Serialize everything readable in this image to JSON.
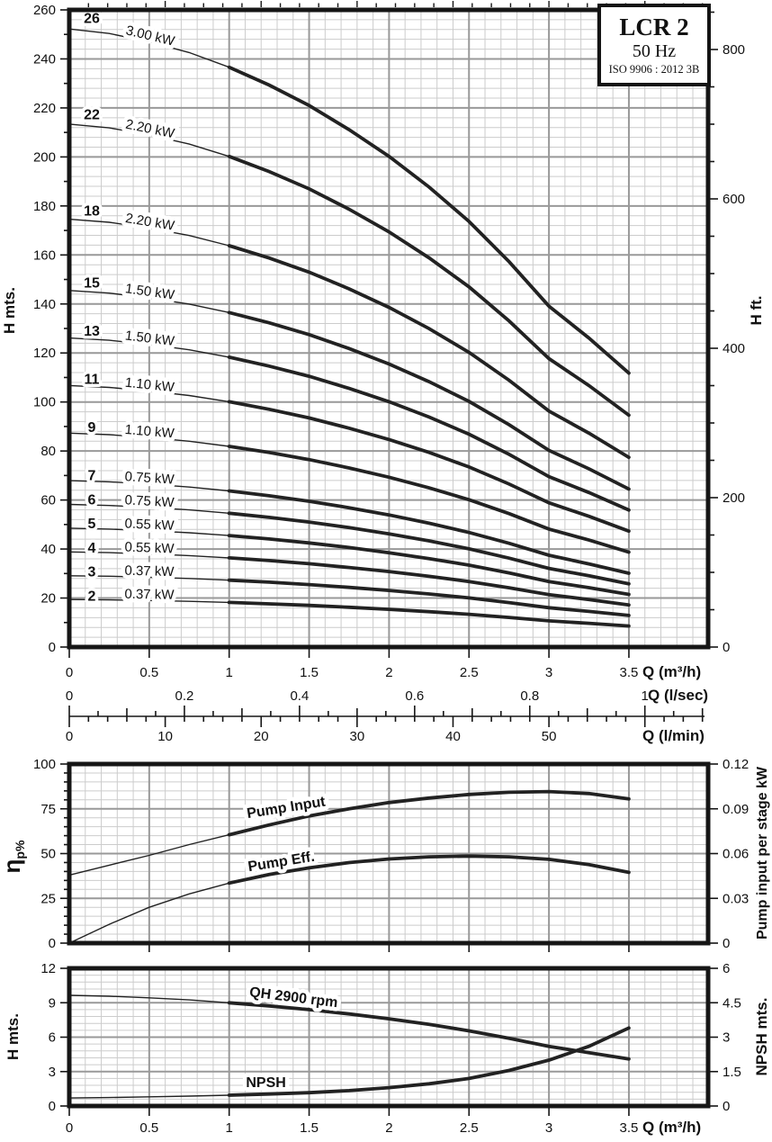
{
  "rating_plate": {
    "model": "LCR 2",
    "frequency": "50 Hz",
    "standard": "ISO 9906 : 2012 3B"
  },
  "colors": {
    "curve": "#222222",
    "grid_minor": "#cccccc",
    "grid_major": "#999999",
    "border": "#161616",
    "text": "#111111"
  },
  "chart_data": [
    {
      "id": "qh-multistage",
      "type": "line",
      "xlabel": "Q (m³/h)",
      "ylabel_left": "H mts.",
      "ylabel_right": "H ft.",
      "xlim": [
        0,
        4
      ],
      "ylim": [
        0,
        260
      ],
      "x_ticks": {
        "values": [
          0,
          0.5,
          1,
          1.5,
          2,
          2.5,
          3,
          3.5
        ],
        "labels": [
          "0",
          "0.5",
          "1",
          "1.5",
          "2",
          "2.5",
          "3",
          "3.5"
        ]
      },
      "y_ticks": {
        "values": [
          0,
          20,
          40,
          60,
          80,
          100,
          120,
          140,
          160,
          180,
          200,
          220,
          240,
          260
        ],
        "labels": [
          "0",
          "20",
          "40",
          "60",
          "80",
          "100",
          "120",
          "140",
          "160",
          "180",
          "200",
          "220",
          "240",
          "260"
        ],
        "minor_step": 10
      },
      "right_ticks": {
        "unit": "ft",
        "values": [
          0,
          200,
          400,
          600,
          800
        ],
        "labels": [
          "0",
          "200",
          "400",
          "600",
          "800"
        ],
        "minor_step": 50
      },
      "stage_curve_q": [
        0,
        0.25,
        0.5,
        0.75,
        1,
        1.25,
        1.5,
        1.75,
        2,
        2.25,
        2.5,
        2.75,
        3,
        3.25,
        3.5
      ],
      "stage_head_per_stage_m": [
        9.7,
        9.63,
        9.5,
        9.33,
        9.1,
        8.82,
        8.5,
        8.12,
        7.7,
        7.22,
        6.68,
        6.05,
        5.35,
        4.85,
        4.3
      ],
      "stages": [
        {
          "n": 26,
          "power": "3.00 kW"
        },
        {
          "n": 22,
          "power": "2.20 kW"
        },
        {
          "n": 18,
          "power": "2.20 kW"
        },
        {
          "n": 15,
          "power": "1.50 kW"
        },
        {
          "n": 13,
          "power": "1.50 kW"
        },
        {
          "n": 11,
          "power": "1.10 kW"
        },
        {
          "n": 9,
          "power": "1.10 kW"
        },
        {
          "n": 7,
          "power": "0.75 kW"
        },
        {
          "n": 6,
          "power": "0.75 kW"
        },
        {
          "n": 5,
          "power": "0.55 kW"
        },
        {
          "n": 4,
          "power": "0.55 kW"
        },
        {
          "n": 3,
          "power": "0.37 kW"
        },
        {
          "n": 2,
          "power": "0.37 kW"
        }
      ]
    },
    {
      "id": "efficiency-power",
      "type": "line",
      "ylabel_left": "ηp%",
      "ylabel_left_main": "η",
      "ylabel_left_sub": "p%",
      "ylabel_right": "Pump input per stage kW",
      "ylim": [
        0,
        100
      ],
      "right_ylim_kw": [
        0,
        0.12
      ],
      "left_ticks": {
        "values": [
          0,
          25,
          50,
          75,
          100
        ],
        "labels": [
          "0",
          "25",
          "50",
          "75",
          "100"
        ],
        "minor_step": 5
      },
      "right_ticks": {
        "values": [
          0,
          0.03,
          0.06,
          0.09,
          0.12
        ],
        "labels": [
          "0",
          "0.03",
          "0.06",
          "0.09",
          "0.12"
        ]
      },
      "x": [
        0,
        0.25,
        0.5,
        0.75,
        1,
        1.25,
        1.5,
        1.75,
        2,
        2.25,
        2.5,
        2.75,
        3,
        3.25,
        3.5
      ],
      "series": [
        {
          "name": "Pump Input",
          "values": [
            38,
            43.5,
            49,
            55,
            60.5,
            66,
            71,
            75,
            78.5,
            81,
            83,
            84.2,
            84.6,
            83.5,
            80.5
          ]
        },
        {
          "name": "Pump Eff.",
          "values": [
            0,
            10.5,
            20,
            27.5,
            33.5,
            38.3,
            42,
            45,
            47,
            48.2,
            48.6,
            48.2,
            46.8,
            43.8,
            39.5
          ]
        }
      ]
    },
    {
      "id": "qh-npsh-single-stage",
      "type": "line",
      "xlabel": "Q (m³/h)",
      "ylabel_left": "H mts.",
      "ylabel_right": "NPSH mts.",
      "ylim": [
        0,
        12
      ],
      "right_ylim": [
        0,
        6
      ],
      "x_ticks": {
        "values": [
          0,
          0.5,
          1,
          1.5,
          2,
          2.5,
          3,
          3.5
        ],
        "labels": [
          "0",
          "0.5",
          "1",
          "1.5",
          "2",
          "2.5",
          "3",
          "3.5"
        ]
      },
      "left_ticks": {
        "values": [
          0,
          3,
          6,
          9,
          12
        ],
        "labels": [
          "0",
          "3",
          "6",
          "9",
          "12"
        ]
      },
      "right_ticks": {
        "values": [
          0,
          1.5,
          3,
          4.5,
          6
        ],
        "labels": [
          "0",
          "1.5",
          "3",
          "4.5",
          "6"
        ]
      },
      "x": [
        0,
        0.25,
        0.5,
        0.75,
        1,
        1.25,
        1.5,
        1.75,
        2,
        2.25,
        2.5,
        2.75,
        3,
        3.25,
        3.5
      ],
      "series": [
        {
          "name": "QH 2900 rpm",
          "axis": "left",
          "values": [
            9.65,
            9.57,
            9.43,
            9.25,
            9.0,
            8.72,
            8.4,
            8.02,
            7.6,
            7.12,
            6.55,
            5.9,
            5.2,
            4.65,
            4.1
          ]
        },
        {
          "name": "NPSH",
          "axis": "right",
          "values": [
            0.35,
            0.37,
            0.4,
            0.43,
            0.47,
            0.52,
            0.58,
            0.67,
            0.8,
            0.97,
            1.2,
            1.55,
            2.0,
            2.6,
            3.4
          ]
        }
      ]
    }
  ],
  "flow_scales": {
    "lsec": {
      "label": "Q (l/sec)",
      "m3h_per_unit": 3.6,
      "ticks": {
        "values": [
          0,
          0.2,
          0.4,
          0.6,
          0.8,
          1
        ],
        "labels": [
          "0",
          "0.2",
          "0.4",
          "0.6",
          "0.8",
          "1"
        ],
        "minor_step": 0.05,
        "medium_step": 0.1
      }
    },
    "lmin": {
      "label": "Q (l/min)",
      "m3h_per_unit": 0.06,
      "ticks": {
        "values": [
          0,
          10,
          20,
          30,
          40,
          50
        ],
        "labels": [
          "0",
          "10",
          "20",
          "30",
          "40",
          "50"
        ],
        "minor_step": 2
      }
    }
  }
}
